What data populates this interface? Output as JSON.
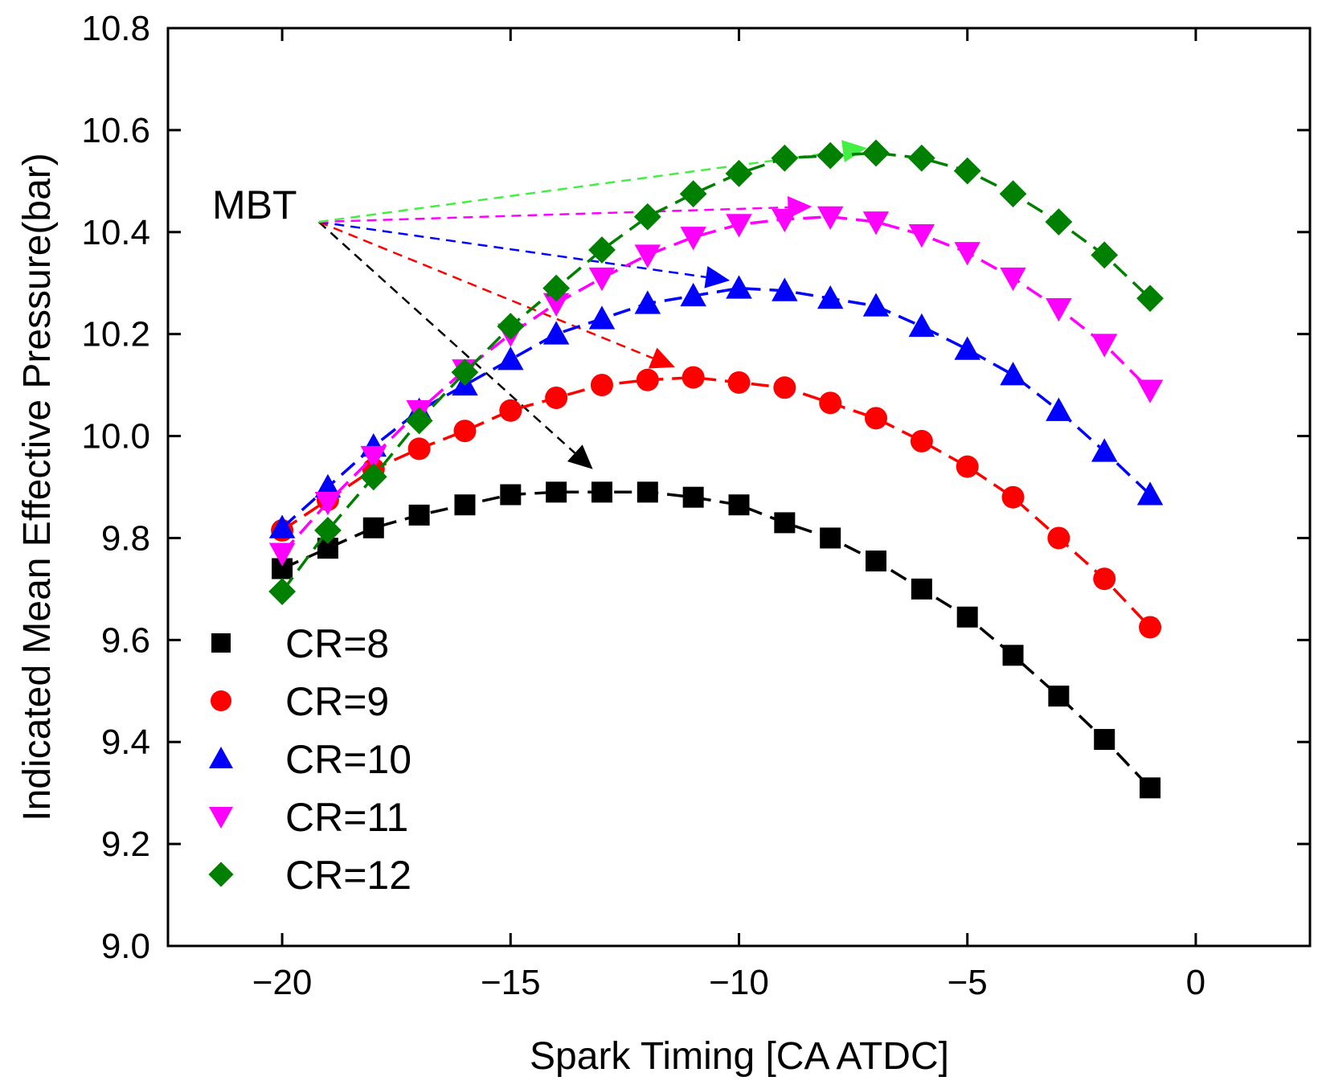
{
  "chart_data": {
    "type": "scatter",
    "title": "",
    "xlabel": "Spark Timing [CA ATDC]",
    "ylabel": "Indicated Mean Effective Pressure(bar)",
    "xlim": [
      -22.5,
      2.5
    ],
    "ylim": [
      9.0,
      10.8
    ],
    "xticks": [
      -20,
      -15,
      -10,
      -5,
      0
    ],
    "xtick_labels": [
      "−20",
      "−15",
      "−10",
      "−5",
      "0"
    ],
    "yticks": [
      9.0,
      9.2,
      9.4,
      9.6,
      9.8,
      10.0,
      10.2,
      10.4,
      10.6,
      10.8
    ],
    "ytick_labels": [
      "9.0",
      "9.2",
      "9.4",
      "9.6",
      "9.8",
      "10.0",
      "10.2",
      "10.4",
      "10.6",
      "10.8"
    ],
    "grid": false,
    "legend_position": "bottom-left",
    "x": [
      -20,
      -19,
      -18,
      -17,
      -16,
      -15,
      -14,
      -13,
      -12,
      -11,
      -10,
      -9,
      -8,
      -7,
      -6,
      -5,
      -4,
      -3,
      -2,
      -1
    ],
    "series": [
      {
        "name": "CR=8",
        "marker": "square",
        "color": "#000000",
        "values": [
          9.74,
          9.78,
          9.82,
          9.845,
          9.865,
          9.885,
          9.89,
          9.89,
          9.89,
          9.88,
          9.865,
          9.83,
          9.8,
          9.755,
          9.7,
          9.645,
          9.57,
          9.49,
          9.405,
          9.31
        ]
      },
      {
        "name": "CR=9",
        "marker": "circle",
        "color": "#ff0000",
        "values": [
          9.815,
          9.875,
          9.935,
          9.975,
          10.01,
          10.05,
          10.075,
          10.1,
          10.11,
          10.115,
          10.105,
          10.095,
          10.065,
          10.035,
          9.99,
          9.94,
          9.88,
          9.8,
          9.72,
          9.625
        ]
      },
      {
        "name": "CR=10",
        "marker": "triangle-up",
        "color": "#0000ff",
        "values": [
          9.82,
          9.9,
          9.98,
          10.05,
          10.1,
          10.15,
          10.2,
          10.23,
          10.26,
          10.275,
          10.29,
          10.285,
          10.27,
          10.255,
          10.215,
          10.17,
          10.12,
          10.05,
          9.97,
          9.885
        ]
      },
      {
        "name": "CR=11",
        "marker": "triangle-down",
        "color": "#ff00ff",
        "values": [
          9.77,
          9.87,
          9.96,
          10.05,
          10.13,
          10.2,
          10.26,
          10.31,
          10.355,
          10.39,
          10.415,
          10.425,
          10.43,
          10.42,
          10.395,
          10.36,
          10.31,
          10.25,
          10.18,
          10.09
        ]
      },
      {
        "name": "CR=12",
        "marker": "diamond",
        "color": "#008000",
        "values": [
          9.695,
          9.815,
          9.92,
          10.03,
          10.125,
          10.215,
          10.29,
          10.365,
          10.43,
          10.475,
          10.515,
          10.545,
          10.55,
          10.555,
          10.545,
          10.52,
          10.475,
          10.42,
          10.355,
          10.27
        ]
      }
    ],
    "annotations": [
      {
        "text": "MBT",
        "origin": [
          -19.2,
          10.42
        ],
        "arrows": [
          {
            "series": "CR=8",
            "color": "#000000",
            "to": [
              -13.2,
              9.935
            ]
          },
          {
            "series": "CR=9",
            "color": "#ff0000",
            "to": [
              -11.4,
              10.135
            ]
          },
          {
            "series": "CR=10",
            "color": "#0000ff",
            "to": [
              -10.2,
              10.305
            ]
          },
          {
            "series": "CR=11",
            "color": "#ff00ff",
            "to": [
              -8.4,
              10.45
            ]
          },
          {
            "series": "CR=12",
            "color": "#44ee44",
            "to": [
              -7.2,
              10.565
            ]
          }
        ]
      }
    ]
  }
}
